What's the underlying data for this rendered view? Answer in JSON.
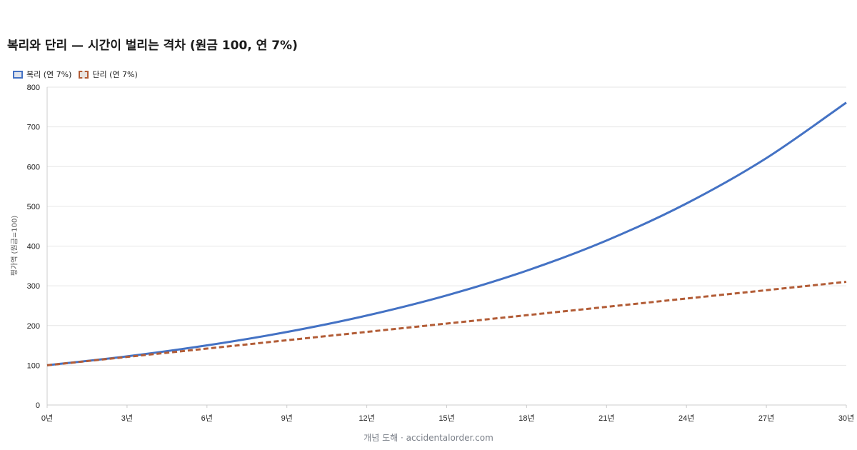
{
  "title": "복리와 단리 — 시간이 벌리는 격차 (원금 100, 연 7%)",
  "footer": "개념 도해 · accidentalorder.com",
  "colors": {
    "compound": "#4472c4",
    "simple": "#b25c36",
    "grid": "#e6e6e6",
    "axis": "#cccccc"
  },
  "chart_data": {
    "type": "line",
    "ylabel": "평가액 (원금=100)",
    "xlabel": "",
    "ylim": [
      0,
      800
    ],
    "xlim": [
      0,
      30
    ],
    "y_ticks": [
      0,
      100,
      200,
      300,
      400,
      500,
      600,
      700,
      800
    ],
    "x_ticks": [
      "0년",
      "3년",
      "6년",
      "9년",
      "12년",
      "15년",
      "18년",
      "21년",
      "24년",
      "27년",
      "30년"
    ],
    "legend_position": "top-left",
    "grid": true,
    "x": [
      0,
      3,
      6,
      9,
      12,
      15,
      18,
      21,
      24,
      27,
      30
    ],
    "series": [
      {
        "name": "복리 (연 7%)",
        "style": "solid",
        "color": "#4472c4",
        "values": [
          100,
          122.5,
          150.1,
          183.8,
          225.2,
          275.9,
          338.0,
          414.0,
          507.2,
          621.4,
          761.2
        ]
      },
      {
        "name": "단리 (연 7%)",
        "style": "dashed",
        "color": "#b25c36",
        "values": [
          100,
          121,
          142,
          163,
          184,
          205,
          226,
          247,
          268,
          289,
          310
        ]
      }
    ]
  }
}
